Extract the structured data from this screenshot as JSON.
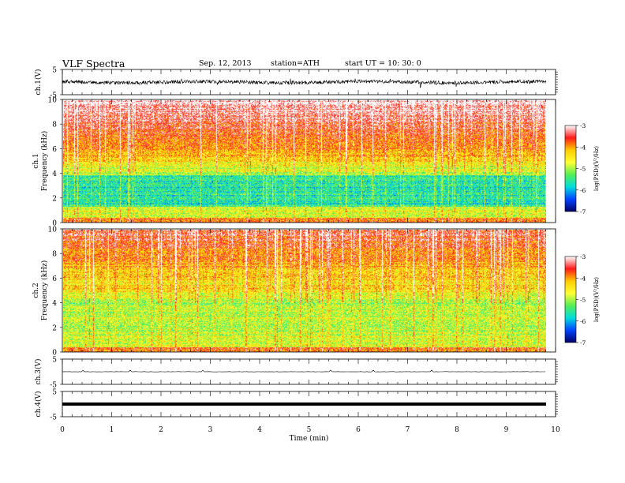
{
  "header": {
    "title": "VLF  Spectra",
    "date": "Sep. 12, 2013",
    "station": "station=ATH",
    "start": "start  UT  =    10: 30: 0"
  },
  "colorbar": {
    "label": "log(PSD)(V²/Hz)",
    "ticks": [
      "-3",
      "-4",
      "-5",
      "-6",
      "-7"
    ],
    "colors": [
      "#ffffff",
      "#ff1a1a",
      "#ffcc00",
      "#ffff33",
      "#55ee55",
      "#00dddd",
      "#0044ff",
      "#000066"
    ]
  },
  "chart_data": [
    {
      "type": "line",
      "name": "ch1-waveform",
      "ylabel": "ch.1(V)",
      "ylim": [
        -5,
        5
      ],
      "ytick_labels": [
        "5",
        "-5"
      ],
      "trace": "noisy waveform near 0 V, fluctuations about ±1.5 V"
    },
    {
      "type": "heatmap",
      "name": "ch1-spectrogram",
      "ylabel_channel": "ch.1",
      "ylabel": "Frequency  (kHz)",
      "ylim": [
        0,
        10
      ],
      "ytick_labels": [
        "0",
        "2",
        "4",
        "6",
        "8",
        "10"
      ]
    },
    {
      "type": "heatmap",
      "name": "ch2-spectrogram",
      "ylabel_channel": "ch.2",
      "ylabel": "Frequency  (kHz)",
      "ylim": [
        0,
        10
      ],
      "ytick_labels": [
        "0",
        "2",
        "4",
        "6",
        "8",
        "10"
      ]
    },
    {
      "type": "line",
      "name": "ch3-waveform",
      "ylabel": "ch.3(V)",
      "ylim": [
        -5,
        5
      ],
      "ytick_labels": [
        "5",
        "-5"
      ],
      "trace": "flat near 0 V"
    },
    {
      "type": "line",
      "name": "ch4-waveform",
      "ylabel": "ch.4(V)",
      "ylim": [
        -5,
        5
      ],
      "ytick_labels": [
        "5",
        "-5"
      ],
      "trace": "thick flat band near 0 V"
    }
  ],
  "xaxis": {
    "label": "Time  (min)",
    "xlim": [
      0,
      10
    ],
    "tick_labels": [
      "0",
      "1",
      "2",
      "3",
      "4",
      "5",
      "6",
      "7",
      "8",
      "9",
      "10"
    ],
    "data_end": 9.8
  }
}
